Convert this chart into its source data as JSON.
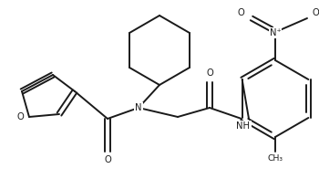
{
  "bg_color": "#ffffff",
  "line_color": "#1a1a1a",
  "line_width": 1.4,
  "font_size": 7.2,
  "figsize": [
    3.5,
    1.96
  ],
  "dpi": 100,
  "xlim": [
    0,
    350
  ],
  "ylim": [
    0,
    196
  ]
}
